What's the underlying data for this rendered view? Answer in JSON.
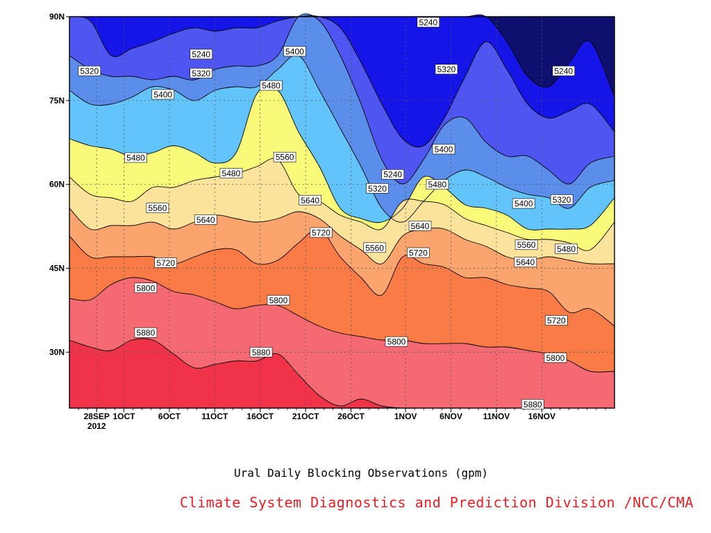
{
  "chart_data": {
    "type": "contour",
    "title": "Ural Daily Blocking Observations (gpm)",
    "credit": "Climate System Diagnostics and Prediction Division /NCC/CMA",
    "credit_color": "#ee1c25",
    "x_ticks": [
      "28SEP",
      "1OCT",
      "6OCT",
      "11OCT",
      "16OCT",
      "21OCT",
      "26OCT",
      "1NOV",
      "6NOV",
      "11NOV",
      "16NOV"
    ],
    "x_tick_days": [
      3,
      6,
      11,
      16,
      21,
      26,
      31,
      37,
      42,
      47,
      52
    ],
    "x_year_label": "2012",
    "x_range_days": [
      0,
      60
    ],
    "y_ticks": [
      "90N",
      "75N",
      "60N",
      "45N",
      "30N"
    ],
    "y_tick_values": [
      90,
      75,
      60,
      45,
      30
    ],
    "y_range": [
      20,
      90
    ],
    "grid": "dotted",
    "levels": [
      5240,
      5320,
      5400,
      5480,
      5560,
      5640,
      5720,
      5800,
      5880
    ],
    "band_colors": [
      "#0e0f6e",
      "#1515e8",
      "#4f55f0",
      "#5a8eea",
      "#62c4fa",
      "#fafa7a",
      "#fce39c",
      "#fba46e",
      "#fa7b45",
      "#f56a72",
      "#f03348"
    ],
    "contour_labels": [
      {
        "text": "5240",
        "day": 39.5,
        "lat": 89.0
      },
      {
        "text": "5320",
        "day": 2.2,
        "lat": 80.3
      },
      {
        "text": "5240",
        "day": 14.5,
        "lat": 83.3
      },
      {
        "text": "5320",
        "day": 14.5,
        "lat": 79.9
      },
      {
        "text": "5400",
        "day": 24.8,
        "lat": 83.8
      },
      {
        "text": "5400",
        "day": 10.3,
        "lat": 76.1
      },
      {
        "text": "5480",
        "day": 22.2,
        "lat": 77.7
      },
      {
        "text": "5320",
        "day": 41.5,
        "lat": 80.6
      },
      {
        "text": "5240",
        "day": 54.4,
        "lat": 80.3
      },
      {
        "text": "5480",
        "day": 7.3,
        "lat": 64.8
      },
      {
        "text": "5480",
        "day": 17.8,
        "lat": 62.0
      },
      {
        "text": "5560",
        "day": 23.7,
        "lat": 64.9
      },
      {
        "text": "5240",
        "day": 35.6,
        "lat": 61.8
      },
      {
        "text": "5320",
        "day": 33.9,
        "lat": 59.3
      },
      {
        "text": "5400",
        "day": 41.2,
        "lat": 66.3
      },
      {
        "text": "5480",
        "day": 40.5,
        "lat": 60.0
      },
      {
        "text": "5400",
        "day": 50.0,
        "lat": 56.6
      },
      {
        "text": "5320",
        "day": 54.2,
        "lat": 57.3
      },
      {
        "text": "5560",
        "day": 9.7,
        "lat": 55.8
      },
      {
        "text": "5640",
        "day": 15.0,
        "lat": 53.7
      },
      {
        "text": "5640",
        "day": 26.5,
        "lat": 57.2
      },
      {
        "text": "5720",
        "day": 27.7,
        "lat": 51.4
      },
      {
        "text": "5560",
        "day": 33.6,
        "lat": 48.7
      },
      {
        "text": "5640",
        "day": 38.6,
        "lat": 52.6
      },
      {
        "text": "5720",
        "day": 38.4,
        "lat": 47.8
      },
      {
        "text": "5560",
        "day": 50.3,
        "lat": 49.2
      },
      {
        "text": "5480",
        "day": 54.7,
        "lat": 48.5
      },
      {
        "text": "5640",
        "day": 50.2,
        "lat": 46.1
      },
      {
        "text": "5720",
        "day": 10.6,
        "lat": 46.0
      },
      {
        "text": "5800",
        "day": 8.4,
        "lat": 41.5
      },
      {
        "text": "5800",
        "day": 23.0,
        "lat": 39.3
      },
      {
        "text": "5720",
        "day": 53.6,
        "lat": 35.7
      },
      {
        "text": "5880",
        "day": 8.4,
        "lat": 33.5
      },
      {
        "text": "5800",
        "day": 36.0,
        "lat": 31.9
      },
      {
        "text": "5880",
        "day": 21.1,
        "lat": 30.0
      },
      {
        "text": "5800",
        "day": 53.5,
        "lat": 29.0
      },
      {
        "text": "5880",
        "day": 51.0,
        "lat": 20.7
      }
    ]
  }
}
